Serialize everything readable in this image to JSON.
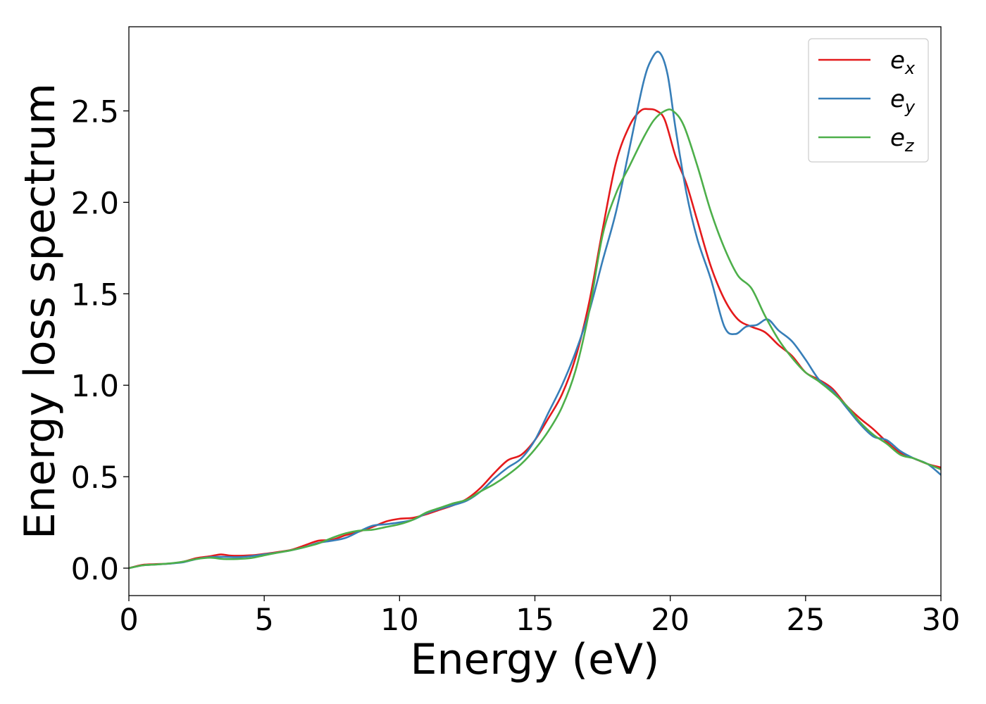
{
  "chart_data": {
    "type": "line",
    "title": "",
    "xlabel": "Energy (eV)",
    "ylabel": "Energy loss spectrum",
    "xlim": [
      0,
      30
    ],
    "ylim": [
      -0.15,
      2.96
    ],
    "x_ticks": [
      0,
      5,
      10,
      15,
      20,
      25,
      30
    ],
    "y_ticks": [
      0.0,
      0.5,
      1.0,
      1.5,
      2.0,
      2.5
    ],
    "x_tick_labels": [
      "0",
      "5",
      "10",
      "15",
      "20",
      "25",
      "30"
    ],
    "y_tick_labels": [
      "0.0",
      "0.5",
      "1.0",
      "1.5",
      "2.0",
      "2.5"
    ],
    "grid": false,
    "legend_position": "top-right",
    "series": [
      {
        "name": "e_x",
        "label_base": "e",
        "label_sub": "x",
        "color": "#e41a1c",
        "points": [
          [
            0,
            0.0
          ],
          [
            0.5,
            0.018
          ],
          [
            1.0,
            0.022
          ],
          [
            1.5,
            0.025
          ],
          [
            2.0,
            0.035
          ],
          [
            2.5,
            0.055
          ],
          [
            3.0,
            0.065
          ],
          [
            3.4,
            0.075
          ],
          [
            3.8,
            0.068
          ],
          [
            4.5,
            0.07
          ],
          [
            5.0,
            0.078
          ],
          [
            5.5,
            0.088
          ],
          [
            6.0,
            0.1
          ],
          [
            6.5,
            0.125
          ],
          [
            7.0,
            0.15
          ],
          [
            7.5,
            0.155
          ],
          [
            8.0,
            0.18
          ],
          [
            8.5,
            0.2
          ],
          [
            9.0,
            0.225
          ],
          [
            9.5,
            0.255
          ],
          [
            10.0,
            0.27
          ],
          [
            10.5,
            0.275
          ],
          [
            11.0,
            0.295
          ],
          [
            11.5,
            0.32
          ],
          [
            12.0,
            0.345
          ],
          [
            12.5,
            0.38
          ],
          [
            13.0,
            0.44
          ],
          [
            13.5,
            0.52
          ],
          [
            14.0,
            0.59
          ],
          [
            14.5,
            0.62
          ],
          [
            15.0,
            0.7
          ],
          [
            15.5,
            0.82
          ],
          [
            16.0,
            0.95
          ],
          [
            16.5,
            1.15
          ],
          [
            17.0,
            1.45
          ],
          [
            17.5,
            1.85
          ],
          [
            18.0,
            2.22
          ],
          [
            18.5,
            2.42
          ],
          [
            18.9,
            2.5
          ],
          [
            19.2,
            2.51
          ],
          [
            19.5,
            2.5
          ],
          [
            19.8,
            2.45
          ],
          [
            20.2,
            2.25
          ],
          [
            20.6,
            2.1
          ],
          [
            21.0,
            1.9
          ],
          [
            21.5,
            1.65
          ],
          [
            22.0,
            1.47
          ],
          [
            22.5,
            1.36
          ],
          [
            23.0,
            1.32
          ],
          [
            23.5,
            1.29
          ],
          [
            24.0,
            1.22
          ],
          [
            24.5,
            1.16
          ],
          [
            25.0,
            1.07
          ],
          [
            25.5,
            1.03
          ],
          [
            26.0,
            0.98
          ],
          [
            26.5,
            0.89
          ],
          [
            27.0,
            0.82
          ],
          [
            27.5,
            0.76
          ],
          [
            28.0,
            0.69
          ],
          [
            28.5,
            0.63
          ],
          [
            29.0,
            0.6
          ],
          [
            29.5,
            0.57
          ],
          [
            30.0,
            0.55
          ]
        ]
      },
      {
        "name": "e_y",
        "label_base": "e",
        "label_sub": "y",
        "color": "#377eb8",
        "points": [
          [
            0,
            0.0
          ],
          [
            0.5,
            0.015
          ],
          [
            1.0,
            0.02
          ],
          [
            1.5,
            0.025
          ],
          [
            2.0,
            0.032
          ],
          [
            2.5,
            0.05
          ],
          [
            3.0,
            0.06
          ],
          [
            3.5,
            0.062
          ],
          [
            4.0,
            0.06
          ],
          [
            4.5,
            0.065
          ],
          [
            5.0,
            0.075
          ],
          [
            5.5,
            0.085
          ],
          [
            6.0,
            0.098
          ],
          [
            6.5,
            0.115
          ],
          [
            7.0,
            0.138
          ],
          [
            7.5,
            0.15
          ],
          [
            8.0,
            0.165
          ],
          [
            8.5,
            0.2
          ],
          [
            9.0,
            0.232
          ],
          [
            9.5,
            0.24
          ],
          [
            10.0,
            0.25
          ],
          [
            10.5,
            0.265
          ],
          [
            11.0,
            0.3
          ],
          [
            11.5,
            0.325
          ],
          [
            12.0,
            0.345
          ],
          [
            12.5,
            0.37
          ],
          [
            13.0,
            0.42
          ],
          [
            13.5,
            0.49
          ],
          [
            14.0,
            0.55
          ],
          [
            14.5,
            0.6
          ],
          [
            15.0,
            0.7
          ],
          [
            15.5,
            0.85
          ],
          [
            16.0,
            1.0
          ],
          [
            16.5,
            1.18
          ],
          [
            17.0,
            1.4
          ],
          [
            17.5,
            1.68
          ],
          [
            18.0,
            1.95
          ],
          [
            18.5,
            2.3
          ],
          [
            19.0,
            2.65
          ],
          [
            19.3,
            2.78
          ],
          [
            19.6,
            2.82
          ],
          [
            19.9,
            2.7
          ],
          [
            20.2,
            2.4
          ],
          [
            20.6,
            2.05
          ],
          [
            21.0,
            1.8
          ],
          [
            21.5,
            1.58
          ],
          [
            22.0,
            1.32
          ],
          [
            22.4,
            1.28
          ],
          [
            22.8,
            1.32
          ],
          [
            23.2,
            1.33
          ],
          [
            23.6,
            1.36
          ],
          [
            24.0,
            1.3
          ],
          [
            24.5,
            1.24
          ],
          [
            25.0,
            1.14
          ],
          [
            25.5,
            1.03
          ],
          [
            26.0,
            0.97
          ],
          [
            26.5,
            0.88
          ],
          [
            27.0,
            0.79
          ],
          [
            27.5,
            0.72
          ],
          [
            28.0,
            0.7
          ],
          [
            28.5,
            0.64
          ],
          [
            29.0,
            0.6
          ],
          [
            29.5,
            0.57
          ],
          [
            30.0,
            0.51
          ]
        ]
      },
      {
        "name": "e_z",
        "label_base": "e",
        "label_sub": "z",
        "color": "#4daf4a",
        "points": [
          [
            0,
            0.0
          ],
          [
            0.5,
            0.015
          ],
          [
            1.0,
            0.02
          ],
          [
            1.5,
            0.026
          ],
          [
            2.0,
            0.035
          ],
          [
            2.5,
            0.05
          ],
          [
            3.0,
            0.057
          ],
          [
            3.5,
            0.05
          ],
          [
            4.0,
            0.05
          ],
          [
            4.5,
            0.055
          ],
          [
            5.0,
            0.07
          ],
          [
            5.5,
            0.085
          ],
          [
            6.0,
            0.098
          ],
          [
            6.5,
            0.115
          ],
          [
            7.0,
            0.135
          ],
          [
            7.5,
            0.165
          ],
          [
            8.0,
            0.19
          ],
          [
            8.5,
            0.205
          ],
          [
            9.0,
            0.21
          ],
          [
            9.5,
            0.225
          ],
          [
            10.0,
            0.24
          ],
          [
            10.5,
            0.265
          ],
          [
            11.0,
            0.305
          ],
          [
            11.5,
            0.33
          ],
          [
            12.0,
            0.355
          ],
          [
            12.5,
            0.375
          ],
          [
            13.0,
            0.42
          ],
          [
            13.5,
            0.46
          ],
          [
            14.0,
            0.51
          ],
          [
            14.5,
            0.57
          ],
          [
            15.0,
            0.65
          ],
          [
            15.5,
            0.75
          ],
          [
            16.0,
            0.88
          ],
          [
            16.5,
            1.08
          ],
          [
            17.0,
            1.4
          ],
          [
            17.5,
            1.82
          ],
          [
            18.0,
            2.05
          ],
          [
            18.5,
            2.2
          ],
          [
            19.0,
            2.35
          ],
          [
            19.4,
            2.45
          ],
          [
            19.8,
            2.5
          ],
          [
            20.1,
            2.5
          ],
          [
            20.5,
            2.42
          ],
          [
            21.0,
            2.2
          ],
          [
            21.5,
            1.95
          ],
          [
            22.0,
            1.75
          ],
          [
            22.5,
            1.6
          ],
          [
            23.0,
            1.53
          ],
          [
            23.5,
            1.38
          ],
          [
            24.0,
            1.25
          ],
          [
            24.5,
            1.15
          ],
          [
            25.0,
            1.07
          ],
          [
            25.5,
            1.02
          ],
          [
            26.0,
            0.96
          ],
          [
            26.5,
            0.89
          ],
          [
            27.0,
            0.8
          ],
          [
            27.5,
            0.73
          ],
          [
            28.0,
            0.68
          ],
          [
            28.5,
            0.62
          ],
          [
            29.0,
            0.6
          ],
          [
            29.5,
            0.57
          ],
          [
            30.0,
            0.54
          ]
        ]
      }
    ]
  }
}
